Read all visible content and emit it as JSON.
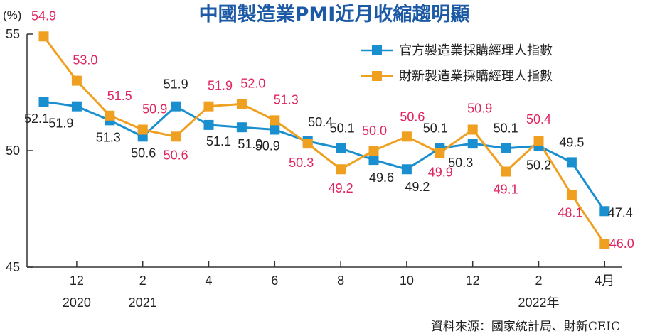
{
  "chart_data": {
    "type": "line",
    "title": "中國製造業PMI近月收縮趨明顯",
    "unit_label": "(%)",
    "ylim": [
      45,
      55
    ],
    "y_ticks": [
      "45",
      "50",
      "55"
    ],
    "x": [
      "2020-11",
      "2020-12",
      "2021-01",
      "2021-02",
      "2021-03",
      "2021-04",
      "2021-05",
      "2021-06",
      "2021-07",
      "2021-08",
      "2021-09",
      "2021-10",
      "2021-11",
      "2021-12",
      "2022-01",
      "2022-02",
      "2022-03",
      "2022-04"
    ],
    "x_tick_labels": [
      {
        "index": 1,
        "label": "12",
        "sublabel": "2020"
      },
      {
        "index": 3,
        "label": "2",
        "sublabel": "2021"
      },
      {
        "index": 5,
        "label": "4",
        "sublabel": ""
      },
      {
        "index": 7,
        "label": "6",
        "sublabel": ""
      },
      {
        "index": 9,
        "label": "8",
        "sublabel": ""
      },
      {
        "index": 11,
        "label": "10",
        "sublabel": ""
      },
      {
        "index": 13,
        "label": "12",
        "sublabel": ""
      },
      {
        "index": 15,
        "label": "2",
        "sublabel": "2022年"
      },
      {
        "index": 17,
        "label": "4月",
        "sublabel": ""
      }
    ],
    "series": [
      {
        "name": "官方製造業採購經理人指數",
        "color": "#1a8fd0",
        "label_color": "#222222",
        "values": [
          52.1,
          51.9,
          51.3,
          50.6,
          51.9,
          51.1,
          51.0,
          50.9,
          50.4,
          50.1,
          49.6,
          49.2,
          50.1,
          50.3,
          50.1,
          50.2,
          49.5,
          47.4
        ]
      },
      {
        "name": "財新製造業採購經理人指數",
        "color": "#f0a020",
        "label_color": "#e0245e",
        "values": [
          54.9,
          53.0,
          51.5,
          50.9,
          50.6,
          51.9,
          52.0,
          51.3,
          50.3,
          49.2,
          50.0,
          50.6,
          49.9,
          50.9,
          49.1,
          50.4,
          48.1,
          46.0
        ]
      }
    ],
    "legend_position": "top-right",
    "grid": false
  },
  "source": "資料來源：國家統計局、財新CEIC"
}
